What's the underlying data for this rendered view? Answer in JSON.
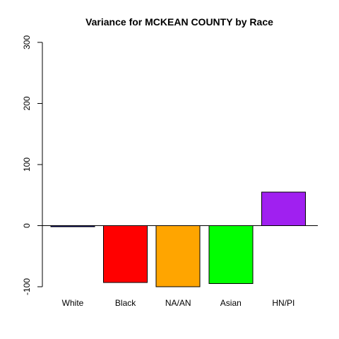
{
  "chart_data": {
    "type": "bar",
    "title": "Variance for MCKEAN COUNTY by Race",
    "xlabel": "",
    "ylabel": "",
    "categories": [
      "White",
      "Black",
      "NA/AN",
      "Asian",
      "HN/PI"
    ],
    "values": [
      -2,
      -93,
      -100,
      -95,
      55
    ],
    "colors": [
      "#00008B",
      "#FF0000",
      "#FFA500",
      "#00FF00",
      "#A020F0"
    ],
    "ylim": [
      -100,
      300
    ],
    "yticks": [
      -100,
      0,
      100,
      200,
      300
    ],
    "ytick_labels": [
      "-100",
      "0",
      "100",
      "200",
      "300"
    ],
    "grid": false,
    "legend": "none",
    "zero_line": true
  }
}
